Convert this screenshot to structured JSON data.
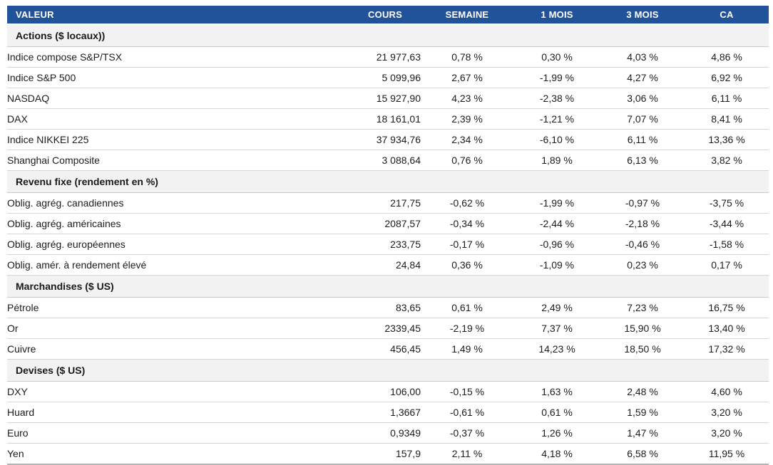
{
  "colors": {
    "header_bg": "#21539A",
    "positive": "#0AA35A",
    "negative": "#E02222",
    "section_bg": "#F2F2F2"
  },
  "table": {
    "columns": [
      "VALEUR",
      "COURS",
      "SEMAINE",
      "1 MOIS",
      "3 MOIS",
      "CA"
    ],
    "sections": [
      {
        "title": "Actions ($ locaux))",
        "rows": [
          {
            "name": "Indice compose S&P/TSX",
            "cours": "21 977,63",
            "values": [
              "0,78 %",
              "0,30 %",
              "4,03 %",
              "4,86 %"
            ]
          },
          {
            "name": "Indice S&P 500",
            "cours": "5 099,96",
            "values": [
              "2,67 %",
              "-1,99 %",
              "4,27 %",
              "6,92 %"
            ]
          },
          {
            "name": "NASDAQ",
            "cours": "15 927,90",
            "values": [
              "4,23 %",
              "-2,38 %",
              "3,06 %",
              "6,11 %"
            ]
          },
          {
            "name": "DAX",
            "cours": "18 161,01",
            "values": [
              "2,39 %",
              "-1,21 %",
              "7,07 %",
              "8,41 %"
            ]
          },
          {
            "name": "Indice NIKKEI 225",
            "cours": "37 934,76",
            "values": [
              "2,34 %",
              "-6,10 %",
              "6,11 %",
              "13,36 %"
            ]
          },
          {
            "name": "Shanghai Composite",
            "cours": "3 088,64",
            "values": [
              "0,76 %",
              "1,89 %",
              "6,13 %",
              "3,82 %"
            ]
          }
        ]
      },
      {
        "title": "Revenu fixe (rendement en %)",
        "rows": [
          {
            "name": "Oblig. agrég. canadiennes",
            "cours": "217,75",
            "values": [
              "-0,62 %",
              "-1,99 %",
              "-0,97 %",
              "-3,75 %"
            ]
          },
          {
            "name": "Oblig. agrég. américaines",
            "cours": "2087,57",
            "values": [
              "-0,34 %",
              "-2,44 %",
              "-2,18 %",
              "-3,44 %"
            ]
          },
          {
            "name": "Oblig. agrég. européennes",
            "cours": "233,75",
            "values": [
              "-0,17 %",
              "-0,96 %",
              "-0,46 %",
              "-1,58 %"
            ]
          },
          {
            "name": "Oblig. amér. à rendement élevé",
            "cours": "24,84",
            "values": [
              "0,36 %",
              "-1,09 %",
              "0,23 %",
              "0,17 %"
            ]
          }
        ]
      },
      {
        "title": "Marchandises ($ US)",
        "rows": [
          {
            "name": "Pétrole",
            "cours": "83,65",
            "values": [
              "0,61 %",
              "2,49 %",
              "7,23 %",
              "16,75 %"
            ]
          },
          {
            "name": "Or",
            "cours": "2339,45",
            "values": [
              "-2,19 %",
              "7,37 %",
              "15,90 %",
              "13,40 %"
            ]
          },
          {
            "name": "Cuivre",
            "cours": "456,45",
            "values": [
              "1,49 %",
              "14,23 %",
              "18,50 %",
              "17,32 %"
            ]
          }
        ]
      },
      {
        "title": "Devises ($ US)",
        "rows": [
          {
            "name": "DXY",
            "cours": "106,00",
            "values": [
              "-0,15 %",
              "1,63 %",
              "2,48 %",
              "4,60 %"
            ]
          },
          {
            "name": "Huard",
            "cours": "1,3667",
            "values": [
              "-0,61 %",
              "0,61 %",
              "1,59 %",
              "3,20 %"
            ]
          },
          {
            "name": "Euro",
            "cours": "0,9349",
            "values": [
              "-0,37 %",
              "1,26 %",
              "1,47 %",
              "3,20 %"
            ]
          },
          {
            "name": "Yen",
            "cours": "157,9",
            "values": [
              "2,11 %",
              "4,18 %",
              "6,58 %",
              "11,95 %"
            ]
          }
        ]
      }
    ]
  }
}
